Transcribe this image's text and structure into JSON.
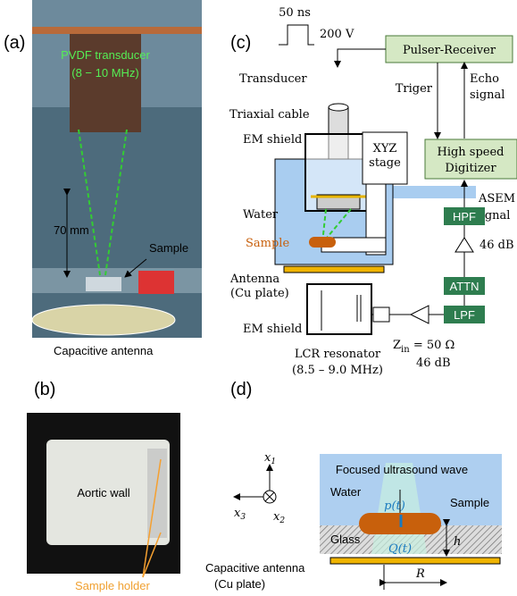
{
  "panel_a": {
    "label": "(a)",
    "transducer": [
      "PVDF transducer",
      "(8 − 10 MHz)"
    ],
    "distance": "70 mm",
    "sample": "Sample",
    "antenna": "Capacitive antenna"
  },
  "panel_b": {
    "label": "(b)",
    "tissue": "Aortic wall",
    "holder": "Sample holder"
  },
  "panel_c": {
    "label": "(c)",
    "pulse_width": "50 ns",
    "pulse_amp": "200 V",
    "pulser": "Pulser-Receiver",
    "transducer": "Transducer",
    "cable": "Triaxial cable",
    "shield_top": "EM shield",
    "stage": [
      "XYZ",
      "stage"
    ],
    "water": "Water",
    "sample": "Sample",
    "antenna": [
      "Antenna",
      "(Cu plate)"
    ],
    "shield_bottom": "EM shield",
    "resonator": [
      "LCR resonator",
      "(8.5 – 9.0 MHz)"
    ],
    "trigger": "Triger",
    "echo": [
      "Echo",
      "signal"
    ],
    "digitizer": [
      "High speed",
      "Digitizer"
    ],
    "asem": [
      "ASEM",
      "signal"
    ],
    "hpf": "HPF",
    "gain1": "46 dB",
    "attn": "ATTN",
    "lpf": "LPF",
    "impedance": {
      "symbol": "Z",
      "subscript": "in",
      "rest": " = 50 Ω"
    },
    "gain2": "46 dB"
  },
  "panel_d": {
    "label": "(d)",
    "wave": "Focused ultrasound wave",
    "water": "Water",
    "sample": "Sample",
    "pressure": "p(t)",
    "glass": "Glass",
    "charge": "Q(t)",
    "height": "h",
    "antenna": [
      "Capacitive antenna",
      "(Cu plate)"
    ],
    "radius": "R",
    "axes": [
      {
        "symbol": "x",
        "subscript": "1"
      },
      {
        "symbol": "x",
        "subscript": "2"
      },
      {
        "symbol": "x",
        "subscript": "3"
      }
    ]
  }
}
